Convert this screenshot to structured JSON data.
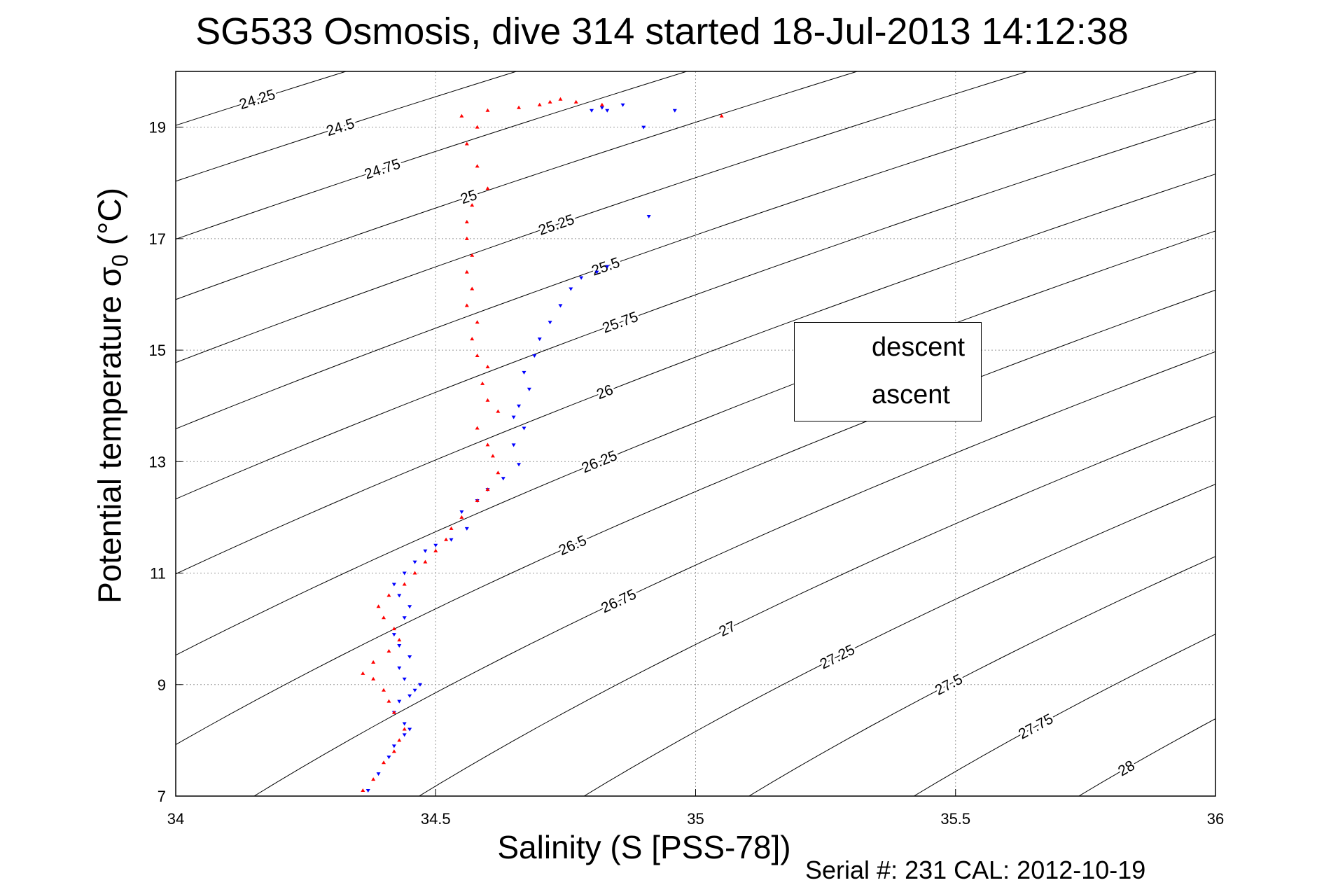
{
  "chart_data": {
    "type": "scatter",
    "title": "SG533 Osmosis, dive 314 started 18-Jul-2013 14:12:38",
    "xlabel": "Salinity (S [PSS-78])",
    "ylabel": "Potential temperature σ",
    "ylabel_sub": "0",
    "ylabel_suffix": " (°C)",
    "xlim": [
      34,
      36
    ],
    "ylim": [
      7,
      20
    ],
    "xticks": [
      "34",
      "34.5",
      "35",
      "35.5",
      "36"
    ],
    "yticks": [
      "7",
      "9",
      "11",
      "13",
      "15",
      "17",
      "19"
    ],
    "xtick_values": [
      34,
      34.5,
      35,
      35.5,
      36
    ],
    "ytick_values": [
      7,
      9,
      11,
      13,
      15,
      17,
      19
    ],
    "grid": true,
    "legend_position": "center-right",
    "series": [
      {
        "name": "descent",
        "color": "#0000ff",
        "marker": "triangle-down",
        "x": [
          34.37,
          34.39,
          34.41,
          34.42,
          34.44,
          34.45,
          34.44,
          34.42,
          34.43,
          34.45,
          34.46,
          34.47,
          34.44,
          34.43,
          34.45,
          34.43,
          34.42,
          34.44,
          34.45,
          34.43,
          34.42,
          34.44,
          34.46,
          34.48,
          34.5,
          34.53,
          34.56,
          34.55,
          34.58,
          34.6,
          34.63,
          34.66,
          34.65,
          34.67,
          34.65,
          34.66,
          34.68,
          34.67,
          34.69,
          34.7,
          34.72,
          34.74,
          34.76,
          34.78,
          34.81,
          34.83,
          34.91,
          34.9,
          34.8,
          34.83,
          34.86,
          34.82,
          34.96
        ],
        "y": [
          7.1,
          7.4,
          7.7,
          7.9,
          8.1,
          8.2,
          8.3,
          8.5,
          8.7,
          8.8,
          8.9,
          9.0,
          9.1,
          9.3,
          9.5,
          9.7,
          9.9,
          10.2,
          10.4,
          10.6,
          10.8,
          11.0,
          11.2,
          11.4,
          11.5,
          11.6,
          11.8,
          12.1,
          12.3,
          12.5,
          12.7,
          12.95,
          13.3,
          13.6,
          13.8,
          14.0,
          14.3,
          14.6,
          14.9,
          15.2,
          15.5,
          15.8,
          16.1,
          16.3,
          16.4,
          16.5,
          17.4,
          19.0,
          19.3,
          19.3,
          19.4,
          19.35,
          19.3
        ]
      },
      {
        "name": "ascent",
        "color": "#ff0000",
        "marker": "triangle-up",
        "x": [
          34.36,
          34.38,
          34.4,
          34.42,
          34.43,
          34.44,
          34.42,
          34.41,
          34.4,
          34.38,
          34.36,
          34.38,
          34.41,
          34.43,
          34.42,
          34.4,
          34.39,
          34.41,
          34.44,
          34.46,
          34.48,
          34.5,
          34.52,
          34.53,
          34.55,
          34.58,
          34.6,
          34.62,
          34.61,
          34.6,
          34.58,
          34.62,
          34.6,
          34.59,
          34.6,
          34.58,
          34.57,
          34.58,
          34.56,
          34.57,
          34.56,
          34.57,
          34.56,
          34.56,
          34.57,
          34.6,
          34.58,
          34.56,
          34.58,
          34.55,
          34.6,
          34.66,
          34.7,
          34.72,
          34.74,
          34.77,
          34.82,
          35.05
        ],
        "y": [
          7.1,
          7.3,
          7.6,
          7.8,
          8.0,
          8.2,
          8.5,
          8.7,
          8.9,
          9.1,
          9.2,
          9.4,
          9.6,
          9.8,
          10.0,
          10.2,
          10.4,
          10.6,
          10.8,
          11.0,
          11.2,
          11.4,
          11.6,
          11.8,
          12.0,
          12.3,
          12.5,
          12.8,
          13.1,
          13.3,
          13.6,
          13.9,
          14.1,
          14.4,
          14.7,
          14.9,
          15.2,
          15.5,
          15.8,
          16.1,
          16.4,
          16.7,
          17.0,
          17.3,
          17.6,
          17.9,
          18.3,
          18.7,
          19.0,
          19.2,
          19.3,
          19.35,
          19.4,
          19.45,
          19.5,
          19.45,
          19.4,
          19.2
        ]
      }
    ],
    "contour_levels": [
      "24.25",
      "24.5",
      "24.75",
      "25",
      "25.25",
      "25.5",
      "25.75",
      "26",
      "26.25",
      "26.5",
      "26.75",
      "27",
      "27.25",
      "27.5",
      "27.75",
      "28"
    ],
    "contour_values": [
      24.25,
      24.5,
      24.75,
      25,
      25.25,
      25.5,
      25.75,
      26,
      26.25,
      26.5,
      26.75,
      27,
      27.25,
      27.5,
      27.75,
      28
    ],
    "annotation": "Serial #: 231  CAL: 2012-10-19"
  }
}
